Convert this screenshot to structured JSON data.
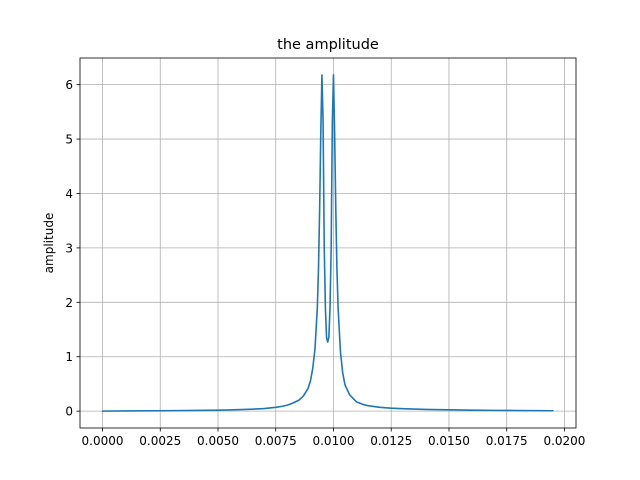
{
  "chart_data": {
    "type": "line",
    "title": "the amplitude",
    "xlabel": "",
    "ylabel": "amplitude",
    "xlim": [
      -0.000975,
      0.0205
    ],
    "ylim": [
      -0.31,
      6.49
    ],
    "grid": true,
    "x_ticks": [
      0.0,
      0.0025,
      0.005,
      0.0075,
      0.01,
      0.0125,
      0.015,
      0.0175,
      0.02
    ],
    "x_tick_labels": [
      "0.0000",
      "0.0025",
      "0.0050",
      "0.0075",
      "0.0100",
      "0.0125",
      "0.0150",
      "0.0175",
      "0.0200"
    ],
    "y_ticks": [
      0,
      1,
      2,
      3,
      4,
      5,
      6
    ],
    "y_tick_labels": [
      "0",
      "1",
      "2",
      "3",
      "4",
      "5",
      "6"
    ],
    "colors": {
      "line": "#1f77b4",
      "grid": "#b0b0b0",
      "axes": "#000000"
    },
    "series": [
      {
        "x": [
          0.0,
          0.001,
          0.002,
          0.003,
          0.004,
          0.005,
          0.0055,
          0.006,
          0.0065,
          0.007,
          0.0075,
          0.0078,
          0.008,
          0.0082,
          0.0085,
          0.0087,
          0.0089,
          0.009,
          0.0091,
          0.0092,
          0.0093,
          0.00935,
          0.0094,
          0.00945,
          0.0095,
          0.00955,
          0.0096,
          0.00965,
          0.0097,
          0.00975,
          0.0098,
          0.00985,
          0.0099,
          0.00995,
          0.01,
          0.01005,
          0.0101,
          0.01015,
          0.0102,
          0.0103,
          0.0104,
          0.0105,
          0.0107,
          0.011,
          0.0113,
          0.0115,
          0.012,
          0.0125,
          0.013,
          0.014,
          0.015,
          0.016,
          0.017,
          0.018,
          0.019,
          0.0195
        ],
        "y": [
          0.0,
          0.003,
          0.005,
          0.008,
          0.012,
          0.018,
          0.022,
          0.028,
          0.036,
          0.048,
          0.07,
          0.09,
          0.11,
          0.14,
          0.2,
          0.28,
          0.42,
          0.55,
          0.78,
          1.15,
          1.9,
          2.6,
          3.7,
          5.1,
          6.18,
          5.3,
          3.0,
          1.9,
          1.35,
          1.27,
          1.36,
          1.9,
          3.0,
          5.3,
          6.18,
          5.1,
          3.7,
          2.6,
          1.9,
          1.1,
          0.7,
          0.48,
          0.3,
          0.17,
          0.12,
          0.1,
          0.07,
          0.055,
          0.045,
          0.032,
          0.024,
          0.018,
          0.014,
          0.011,
          0.008,
          0.007
        ]
      }
    ]
  }
}
